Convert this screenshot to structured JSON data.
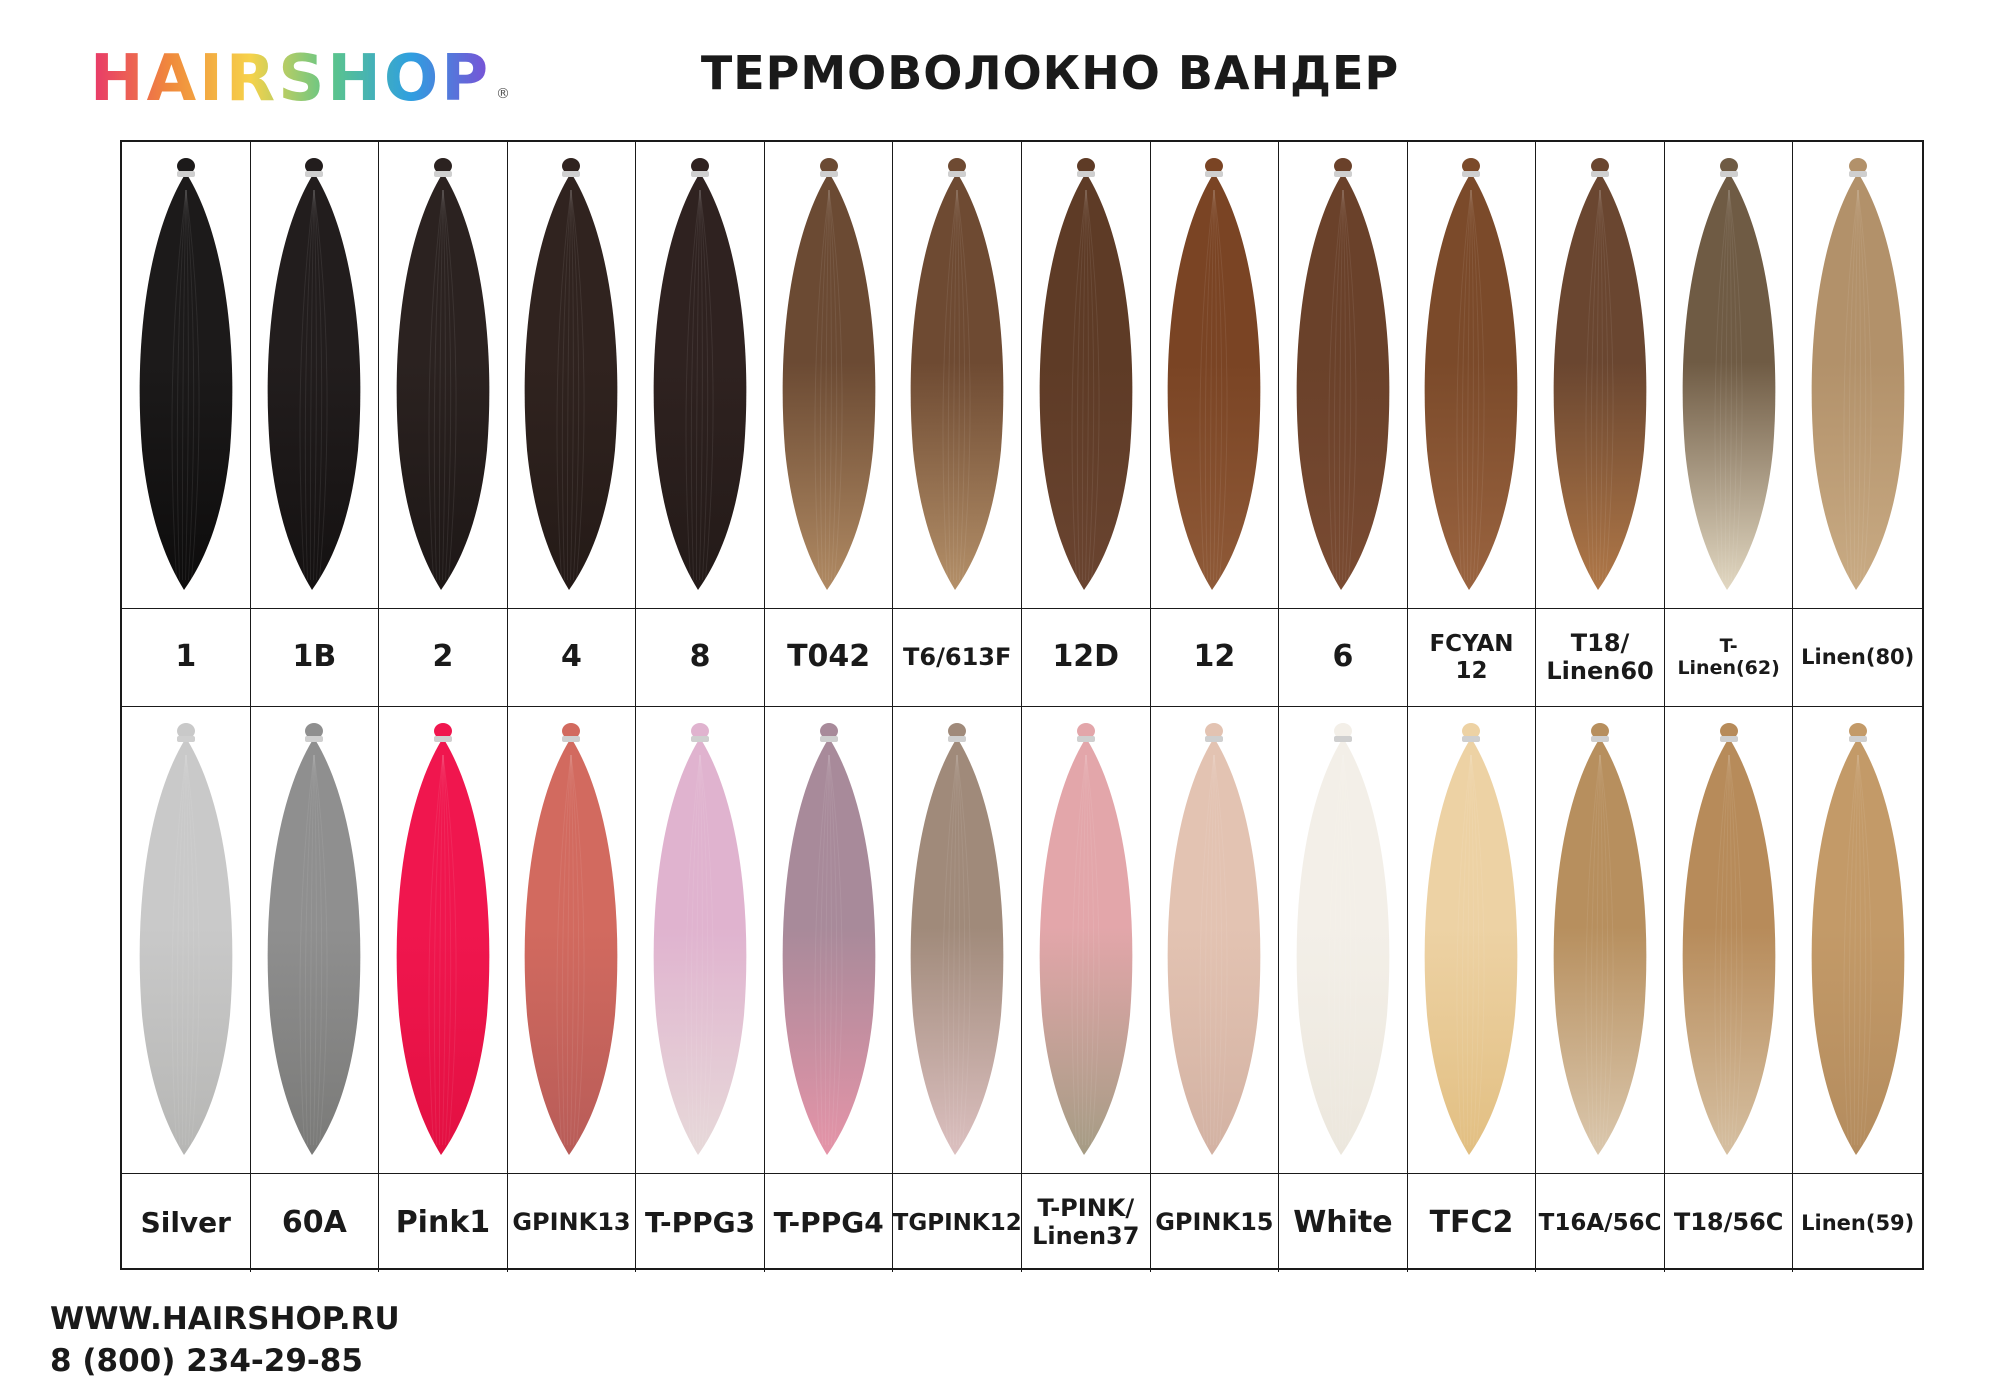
{
  "brand": {
    "name": "HAIRSHOP",
    "registered": "®",
    "gradient": [
      "#e8376b",
      "#f08a3c",
      "#f6d24a",
      "#5cc58a",
      "#2f9fe0",
      "#7b4fd6"
    ]
  },
  "title": "ТЕРМОВОЛОКНО ВАНДЕР",
  "rows": [
    {
      "samples": [
        {
          "label": "1",
          "top": "#1c1a1a",
          "bottom": "#0d0c0c"
        },
        {
          "label": "1B",
          "top": "#221d1d",
          "bottom": "#141111"
        },
        {
          "label": "2",
          "top": "#2b2220",
          "bottom": "#1d1716"
        },
        {
          "label": "4",
          "top": "#30231f",
          "bottom": "#241a17"
        },
        {
          "label": "8",
          "top": "#2f2220",
          "bottom": "#231a18"
        },
        {
          "label": "T042",
          "top": "#6b4a33",
          "bottom": "#b08a63"
        },
        {
          "label": "T6/613F",
          "top": "#6e4a32",
          "bottom": "#b49069"
        },
        {
          "label": "12D",
          "top": "#5e3b26",
          "bottom": "#6a4430"
        },
        {
          "label": "12",
          "top": "#7a4424",
          "bottom": "#8f5a38"
        },
        {
          "label": "6",
          "top": "#6a412a",
          "bottom": "#7a4b32"
        },
        {
          "label": "FCYAN 12",
          "top": "#7b4a2a",
          "bottom": "#9a6440"
        },
        {
          "label": "T18/\nLinen60",
          "top": "#6a4630",
          "bottom": "#b07848"
        },
        {
          "label": "T-Linen(62)",
          "top": "#6f5b44",
          "bottom": "#e2d8c2"
        },
        {
          "label": "Linen(80)",
          "top": "#b2916a",
          "bottom": "#c9ab84"
        }
      ]
    },
    {
      "samples": [
        {
          "label": "Silver",
          "top": "#c9c9c9",
          "bottom": "#b6b6b4"
        },
        {
          "label": "60A",
          "top": "#8f8f8f",
          "bottom": "#7a7a78"
        },
        {
          "label": "Pink1",
          "top": "#f0164e",
          "bottom": "#e31042"
        },
        {
          "label": "GPINK13",
          "top": "#d26a5f",
          "bottom": "#b85c58"
        },
        {
          "label": "T-PPG3",
          "top": "#e0b3cf",
          "bottom": "#e7d9d9"
        },
        {
          "label": "T-PPG4",
          "top": "#a88a9a",
          "bottom": "#e594a8"
        },
        {
          "label": "TGPINK12",
          "top": "#a08a7a",
          "bottom": "#dcc0c0"
        },
        {
          "label": "T-PINK/\nLinen37",
          "top": "#e3a6aa",
          "bottom": "#a59c84"
        },
        {
          "label": "GPINK15",
          "top": "#e3c3b2",
          "bottom": "#d3b2a3"
        },
        {
          "label": "White",
          "top": "#f3efe8",
          "bottom": "#ece7dd"
        },
        {
          "label": "TFC2",
          "top": "#edd2a4",
          "bottom": "#e2bf82"
        },
        {
          "label": "T16A/56C",
          "top": "#b78f5e",
          "bottom": "#dbc8ae"
        },
        {
          "label": "T18/56C",
          "top": "#b78b5a",
          "bottom": "#d6c0a2"
        },
        {
          "label": "Linen(59)",
          "top": "#c39a68",
          "bottom": "#b48c5e"
        }
      ]
    }
  ],
  "footer": {
    "url": "WWW.HAIRSHOP.RU",
    "phone": "8 (800) 234-29-85"
  }
}
